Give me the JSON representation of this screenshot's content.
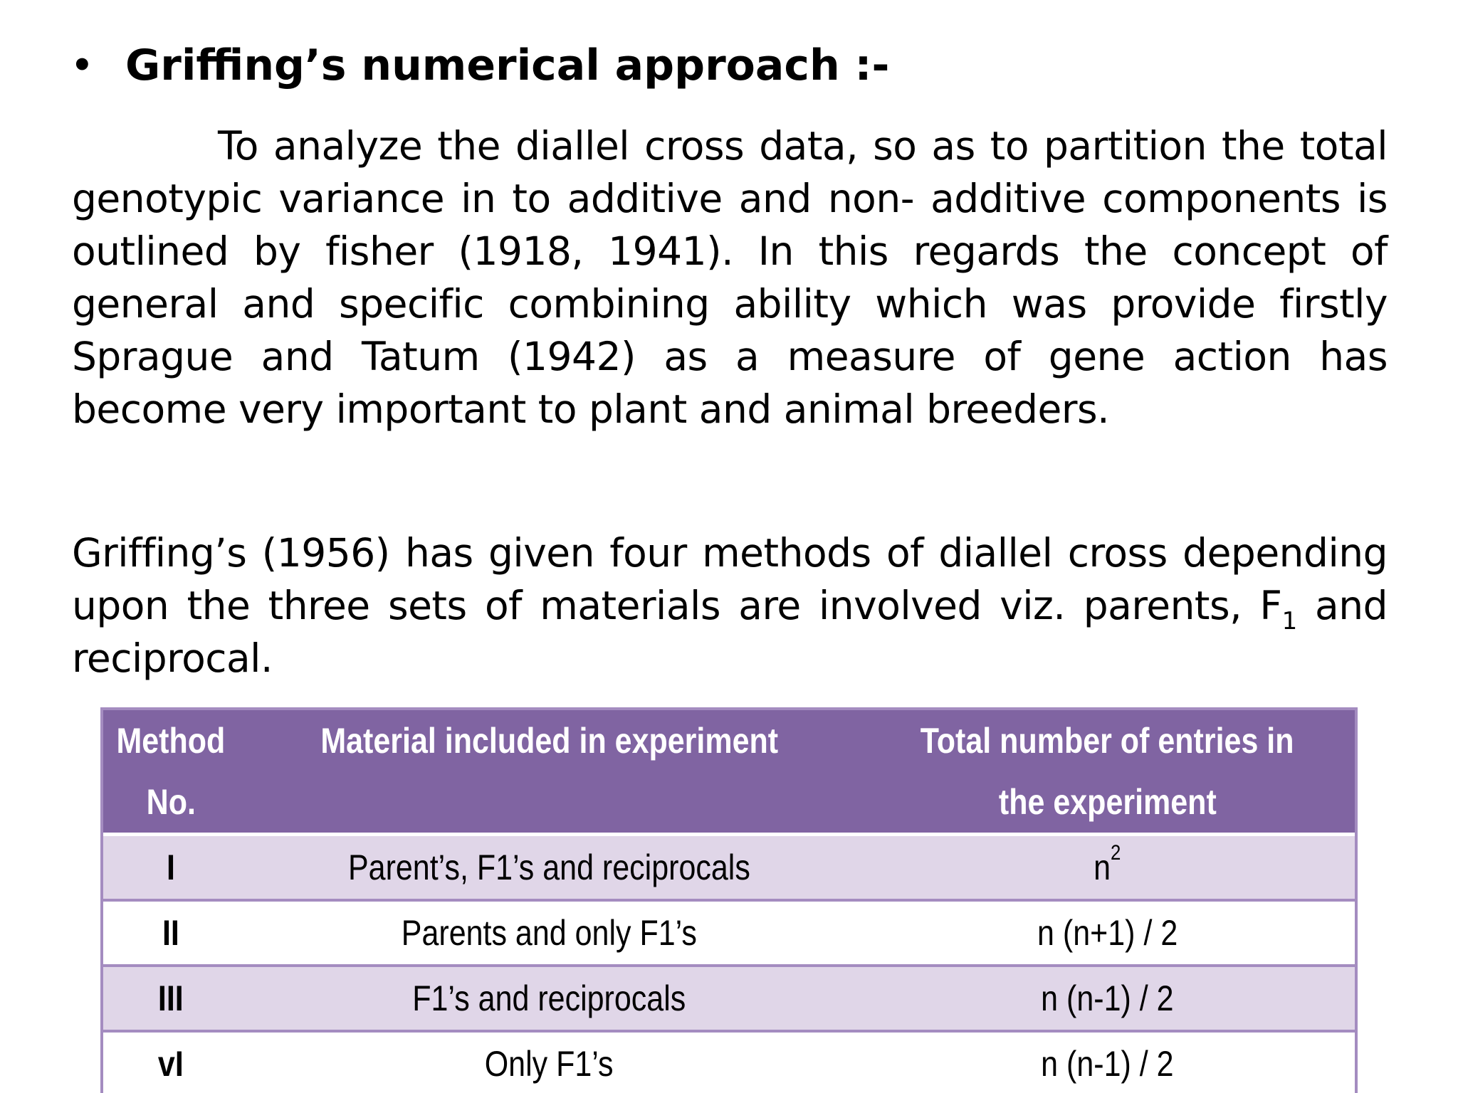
{
  "heading": {
    "bullet": "•",
    "title": "Griffing’s numerical approach :-"
  },
  "paragraph1": "To analyze the diallel cross data, so as to partition the total genotypic variance in to additive and non- additive components is outlined by fisher (1918, 1941). In this regards the concept of general and specific combining ability which was provide firstly Sprague and Tatum (1942) as a measure of gene action has become very important to plant and animal breeders.",
  "paragraph2": {
    "before": "Griffing’s (1956) has given four methods of diallel cross depending upon the three sets of materials are involved viz. parents, F",
    "subscript": "1",
    "after": " and reciprocal."
  },
  "table": {
    "headers": [
      {
        "line1": "Method",
        "line2": "No."
      },
      {
        "line1": "Material included in experiment",
        "line2": ""
      },
      {
        "line1": "Total number of entries in",
        "line2": "the experiment"
      }
    ],
    "rows": [
      {
        "method": "I",
        "material": "Parent’s, F1’s and reciprocals",
        "entries": "n",
        "entries_sup": "2"
      },
      {
        "method": "II",
        "material": "Parents and only F1’s",
        "entries": "n (n+1) / 2",
        "entries_sup": ""
      },
      {
        "method": "III",
        "material": "F1’s and reciprocals",
        "entries": "n (n-1) / 2",
        "entries_sup": ""
      },
      {
        "method": "vI",
        "material": "Only F1’s",
        "entries": "n (n-1) / 2",
        "entries_sup": ""
      }
    ]
  },
  "colors": {
    "header_bg": "#8064a2",
    "row_odd_bg": "#e0d6e8",
    "row_even_bg": "#ffffff",
    "border": "#a48cc0"
  }
}
